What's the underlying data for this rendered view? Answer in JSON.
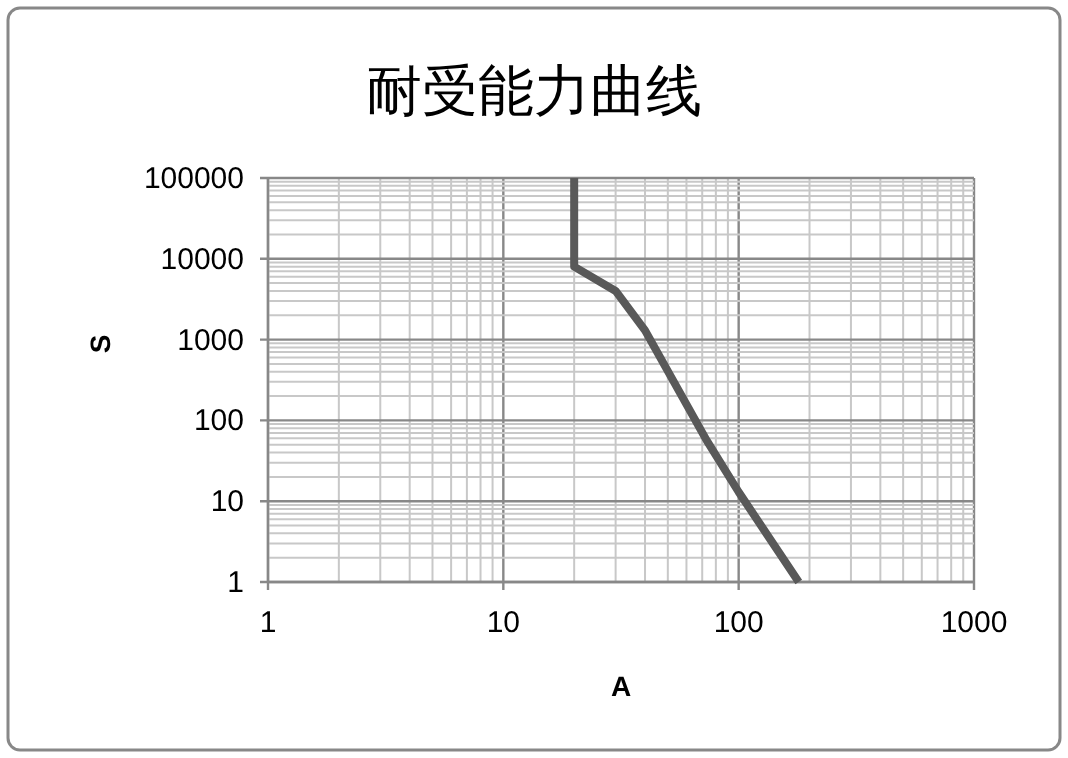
{
  "chart_data": {
    "type": "line",
    "title": "耐受能力曲线",
    "xlabel": "A",
    "ylabel": "S",
    "log": "xy",
    "grid": true,
    "color": "#595959",
    "x": [
      20,
      20,
      30,
      40,
      73,
      100,
      180
    ],
    "values": [
      100000,
      8000,
      4000,
      1300,
      57,
      13,
      1
    ],
    "xlim": [
      1,
      1000
    ],
    "ylim": [
      1,
      100000
    ],
    "xticks": [
      1,
      10,
      100,
      1000
    ],
    "yticks": [
      1,
      10,
      100,
      1000,
      10000,
      100000
    ]
  }
}
